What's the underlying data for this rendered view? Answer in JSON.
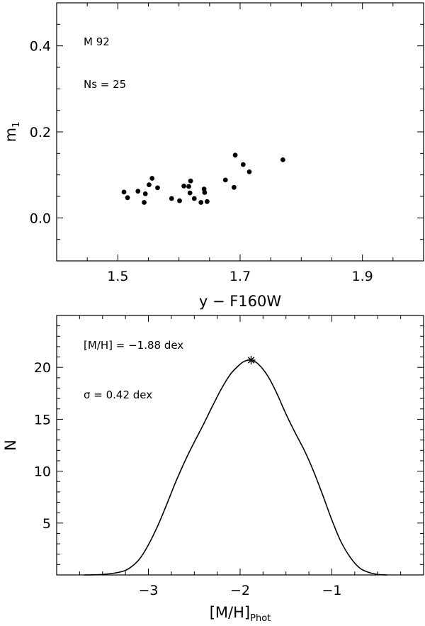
{
  "chart_data": [
    {
      "type": "scatter",
      "xlabel": "y − F160W",
      "ylabel": "m",
      "ylabel_sub": "1",
      "xlim": [
        1.4,
        2.0
      ],
      "ylim": [
        -0.1,
        0.5
      ],
      "xticks": [
        1.5,
        1.7,
        1.9
      ],
      "xtick_labels": [
        "1.5",
        "1.7",
        "1.9"
      ],
      "yticks": [
        0.0,
        0.2,
        0.4
      ],
      "ytick_labels": [
        "0.0",
        "0.2",
        "0.4"
      ],
      "annotations": [
        "M 92",
        "Ns = 25"
      ],
      "points": [
        {
          "x": 1.51,
          "y": 0.06
        },
        {
          "x": 1.516,
          "y": 0.047
        },
        {
          "x": 1.533,
          "y": 0.062
        },
        {
          "x": 1.543,
          "y": 0.036
        },
        {
          "x": 1.545,
          "y": 0.056
        },
        {
          "x": 1.551,
          "y": 0.077
        },
        {
          "x": 1.556,
          "y": 0.092
        },
        {
          "x": 1.565,
          "y": 0.07
        },
        {
          "x": 1.588,
          "y": 0.045
        },
        {
          "x": 1.601,
          "y": 0.04
        },
        {
          "x": 1.608,
          "y": 0.074
        },
        {
          "x": 1.616,
          "y": 0.073
        },
        {
          "x": 1.618,
          "y": 0.058
        },
        {
          "x": 1.619,
          "y": 0.086
        },
        {
          "x": 1.625,
          "y": 0.045
        },
        {
          "x": 1.636,
          "y": 0.036
        },
        {
          "x": 1.641,
          "y": 0.067
        },
        {
          "x": 1.642,
          "y": 0.059
        },
        {
          "x": 1.646,
          "y": 0.038
        },
        {
          "x": 1.676,
          "y": 0.088
        },
        {
          "x": 1.69,
          "y": 0.071
        },
        {
          "x": 1.692,
          "y": 0.146
        },
        {
          "x": 1.705,
          "y": 0.124
        },
        {
          "x": 1.715,
          "y": 0.107
        },
        {
          "x": 1.77,
          "y": 0.135
        }
      ]
    },
    {
      "type": "line",
      "xlabel": "[M/H]",
      "xlabel_sub": "Phot",
      "ylabel": "N",
      "xlim": [
        -4.0,
        0.0
      ],
      "ylim": [
        0,
        25
      ],
      "xticks": [
        -3,
        -2,
        -1
      ],
      "xtick_labels": [
        "−3",
        "−2",
        "−1"
      ],
      "yticks": [
        5,
        10,
        15,
        20
      ],
      "ytick_labels": [
        "5",
        "10",
        "15",
        "20"
      ],
      "annotations": [
        "[M/H] = −1.88 dex",
        "σ = 0.42 dex"
      ],
      "peak": {
        "x": -1.88,
        "y": 20.7
      },
      "x": [
        -3.7,
        -3.5,
        -3.3,
        -3.2,
        -3.1,
        -3.0,
        -2.9,
        -2.8,
        -2.7,
        -2.6,
        -2.5,
        -2.4,
        -2.3,
        -2.2,
        -2.1,
        -2.0,
        -1.95,
        -1.88,
        -1.8,
        -1.7,
        -1.6,
        -1.5,
        -1.4,
        -1.3,
        -1.2,
        -1.1,
        -1.0,
        -0.9,
        -0.8,
        -0.7,
        -0.6,
        -0.5,
        -0.4
      ],
      "y": [
        0.0,
        0.05,
        0.3,
        0.7,
        1.5,
        2.9,
        4.7,
        6.8,
        9.0,
        11.0,
        12.8,
        14.5,
        16.3,
        18.0,
        19.4,
        20.3,
        20.6,
        20.7,
        20.3,
        19.2,
        17.5,
        15.5,
        13.7,
        12.0,
        10.0,
        7.7,
        5.3,
        3.2,
        1.7,
        0.7,
        0.25,
        0.05,
        0.0
      ]
    }
  ]
}
